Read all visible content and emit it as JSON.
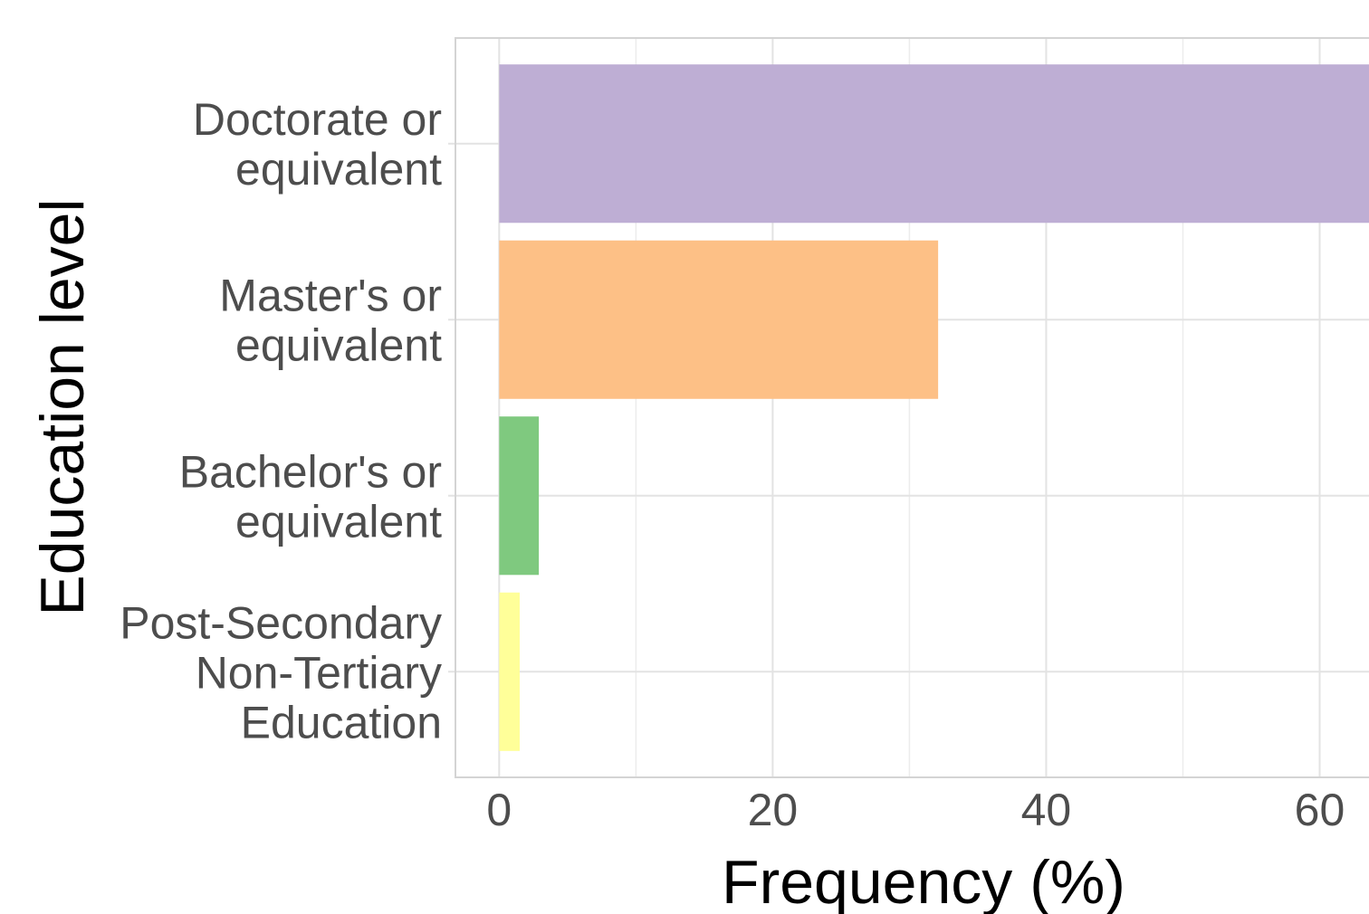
{
  "chart_data": {
    "type": "bar",
    "orientation": "horizontal",
    "categories": [
      [
        "Doctorate or",
        "equivalent"
      ],
      [
        "Master's or",
        "equivalent"
      ],
      [
        "Bachelor's or",
        "equivalent"
      ],
      [
        "Post-Secondary",
        "Non-Tertiary",
        "Education"
      ]
    ],
    "values": [
      63.7,
      32.1,
      2.9,
      1.5
    ],
    "colors": [
      "#beaed4",
      "#fdc086",
      "#7fc97f",
      "#ffff99"
    ],
    "xlabel": "Frequency (%)",
    "ylabel": "Education level",
    "xticks": [
      0,
      20,
      40,
      60
    ],
    "xlim": [
      -3.2,
      65
    ],
    "grid": true,
    "legend": "none"
  }
}
